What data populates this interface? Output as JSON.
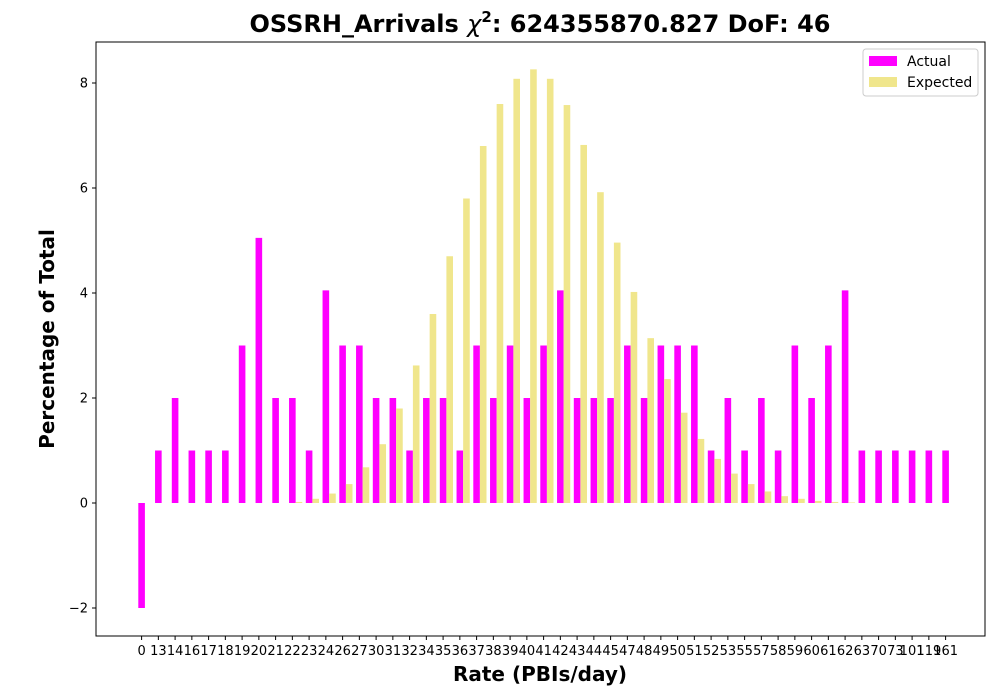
{
  "chart_data": {
    "type": "bar",
    "title_prefix": "OSSRH_Arrivals",
    "title_chi": "χ",
    "title_sup": "2",
    "title_suffix": ": 624355870.827 DoF: 46",
    "xlabel": "Rate (PBIs/day)",
    "ylabel": "Percentage of Total",
    "ylim": [
      -2.5,
      8.8
    ],
    "yticks": [
      -2,
      0,
      2,
      4,
      6,
      8
    ],
    "ytick_labels": [
      "−2",
      "0",
      "2",
      "4",
      "6",
      "8"
    ],
    "grid": false,
    "legend_position": "top-right",
    "categories": [
      "0",
      "13",
      "14",
      "16",
      "17",
      "18",
      "19",
      "20",
      "21",
      "22",
      "23",
      "24",
      "26",
      "27",
      "30",
      "31",
      "32",
      "34",
      "35",
      "36",
      "37",
      "38",
      "39",
      "40",
      "41",
      "42",
      "43",
      "44",
      "45",
      "47",
      "48",
      "49",
      "50",
      "51",
      "52",
      "53",
      "55",
      "57",
      "58",
      "59",
      "60",
      "61",
      "62",
      "63",
      "70",
      "73",
      "101",
      "119",
      "161"
    ],
    "series": [
      {
        "name": "Actual",
        "color": "#ff00ff",
        "values": [
          -2,
          1,
          2,
          1,
          1,
          1,
          3,
          5.05,
          2,
          2,
          1,
          4.05,
          3,
          3,
          2,
          2,
          1,
          2,
          2,
          1,
          3,
          2,
          3,
          2,
          3,
          4.05,
          2,
          2,
          2,
          3,
          2,
          3,
          3,
          3,
          1,
          2,
          1,
          2,
          1,
          3,
          2,
          3,
          4.05,
          1,
          1,
          1,
          1,
          1,
          1
        ]
      },
      {
        "name": "Expected",
        "color": "#f0e68c",
        "values": [
          0,
          0,
          0,
          0,
          0,
          0,
          0,
          0,
          0,
          0.02,
          0.08,
          0.18,
          0.36,
          0.68,
          1.12,
          1.8,
          2.62,
          3.6,
          4.7,
          5.8,
          6.8,
          7.6,
          8.08,
          8.26,
          8.08,
          7.58,
          6.82,
          5.92,
          4.96,
          4.02,
          3.14,
          2.36,
          1.72,
          1.22,
          0.84,
          0.56,
          0.36,
          0.22,
          0.13,
          0.08,
          0.04,
          0.02,
          0.01,
          0,
          0,
          0,
          0,
          0,
          0
        ]
      }
    ]
  }
}
